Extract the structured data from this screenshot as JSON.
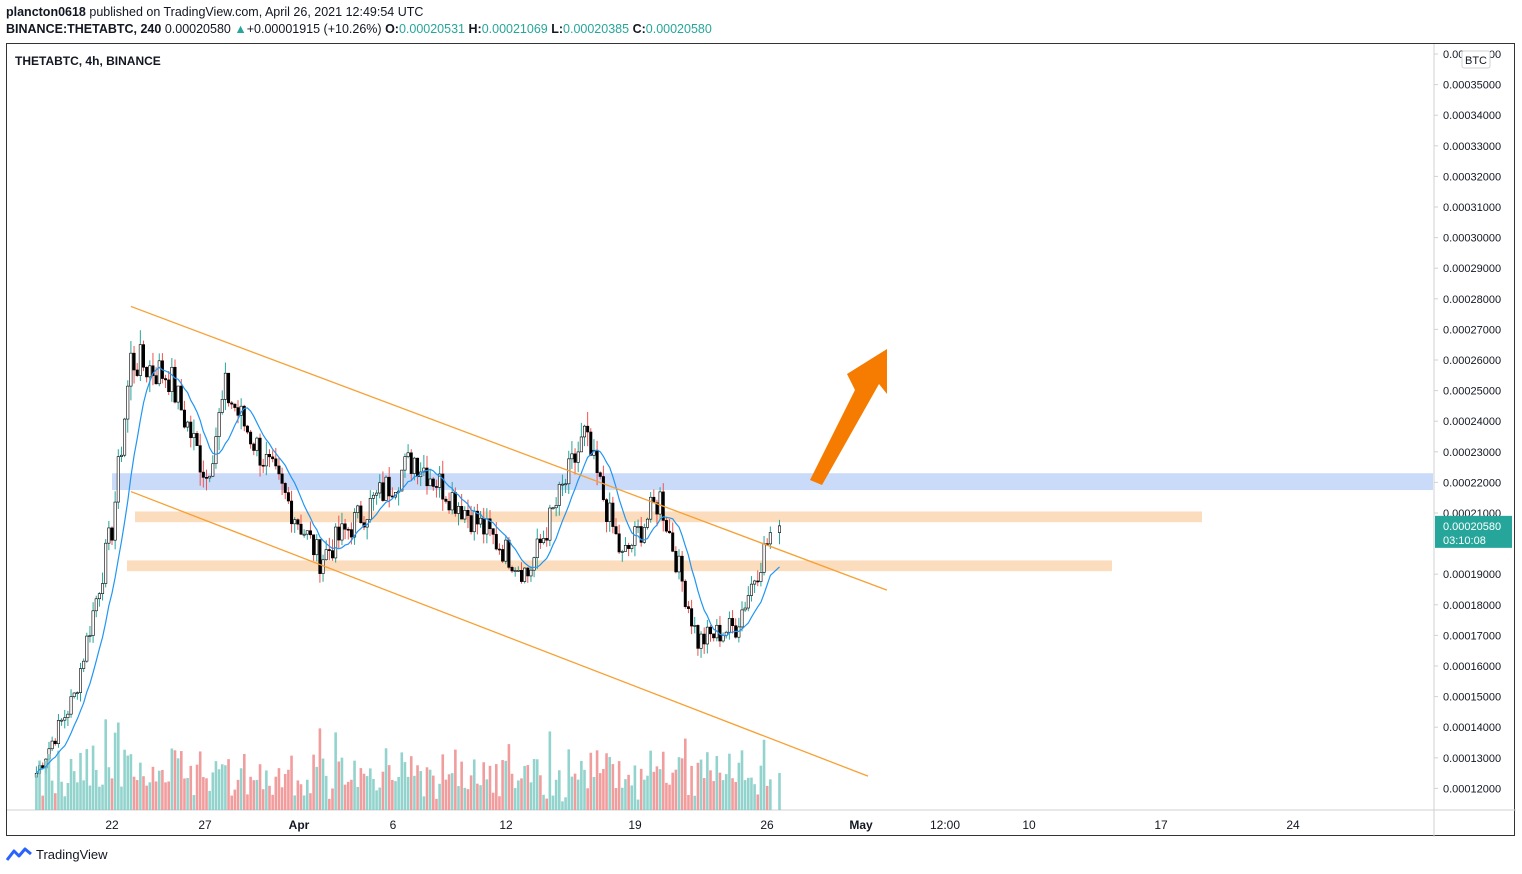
{
  "header": {
    "author": "plancton0618",
    "published_text": "published on TradingView.com, April 26, 2021 12:49:54 UTC",
    "symbol": "BINANCE:THETABTC, 240",
    "last": "0.00020580",
    "change": "+0.00001915 (+10.26%)",
    "o_label": "O:",
    "o_value": "0.00020531",
    "h_label": "H:",
    "h_value": "0.00021069",
    "l_label": "L:",
    "l_value": "0.00020385",
    "c_label": "C:",
    "c_value": "0.00020580"
  },
  "footer": {
    "brand": "TradingView"
  },
  "colors": {
    "up": "#26a69a",
    "down": "#ef5350",
    "candle": "#000000",
    "ma": "#2196f3",
    "channel": "#f7a034",
    "zone_orange": "#f9c48f",
    "zone_blue": "#a6c1f5",
    "arrow": "#f57c00",
    "volume_up": "#80cbc4",
    "volume_down": "#f08c8c",
    "price_badge": "#26a69a"
  },
  "chart_data": {
    "type": "candlestick",
    "title": "THETABTC, 4h, BINANCE",
    "currency_badge": "BTC",
    "price_label": "0.00020580",
    "countdown_label": "03:10:08",
    "y_ticks": [
      "0.00036000",
      "0.00035000",
      "0.00034000",
      "0.00033000",
      "0.00032000",
      "0.00031000",
      "0.00030000",
      "0.00029000",
      "0.00028000",
      "0.00027000",
      "0.00026000",
      "0.00025000",
      "0.00024000",
      "0.00023000",
      "0.00022000",
      "0.00021000",
      "0.00019000",
      "0.00018000",
      "0.00017000",
      "0.00016000",
      "0.00015000",
      "0.00014000",
      "0.00013000",
      "0.00012000"
    ],
    "x_ticks": [
      "22",
      "27",
      "Apr",
      "6",
      "12",
      "19",
      "26",
      "May",
      "12:00",
      "10",
      "17",
      "24"
    ],
    "y_range": [
      0.000113,
      0.000362
    ],
    "key_points": [
      {
        "date": "2021-03-18",
        "close": 0.000125
      },
      {
        "date": "2021-03-20",
        "close": 0.00015
      },
      {
        "date": "2021-03-22",
        "close": 0.000205
      },
      {
        "date": "2021-03-23",
        "close": 0.00026
      },
      {
        "date": "2021-03-25",
        "close": 0.000255
      },
      {
        "date": "2021-03-27",
        "close": 0.000222
      },
      {
        "date": "2021-03-28",
        "close": 0.00025
      },
      {
        "date": "2021-04-02",
        "close": 0.000195
      },
      {
        "date": "2021-04-07",
        "close": 0.000228
      },
      {
        "date": "2021-04-13",
        "close": 0.00019
      },
      {
        "date": "2021-04-16",
        "close": 0.000235
      },
      {
        "date": "2021-04-18",
        "close": 0.000195
      },
      {
        "date": "2021-04-20",
        "close": 0.000215
      },
      {
        "date": "2021-04-22",
        "close": 0.000168
      },
      {
        "date": "2021-04-24",
        "close": 0.000173
      },
      {
        "date": "2021-04-26",
        "close": 0.0002058
      }
    ],
    "zones": [
      {
        "name": "resistance-blue",
        "low": 0.0002175,
        "high": 0.000223
      },
      {
        "name": "zone-orange-upper",
        "low": 0.000207,
        "high": 0.0002105
      },
      {
        "name": "zone-orange-lower",
        "low": 0.000191,
        "high": 0.0001945
      }
    ],
    "channel": {
      "upper": {
        "start": {
          "date": "2021-03-23",
          "price": 0.0002775
        },
        "end": {
          "date": "2021-05-02",
          "price": 0.0001848
        }
      },
      "lower": {
        "start": {
          "date": "2021-03-23",
          "price": 0.000217
        },
        "end": {
          "date": "2021-05-01",
          "price": 0.000124
        }
      }
    },
    "grid": false
  }
}
